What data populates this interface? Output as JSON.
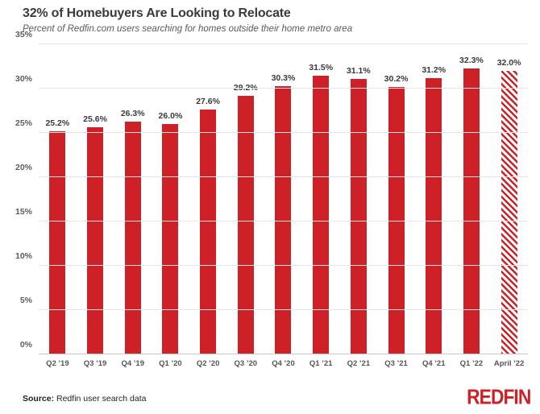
{
  "colors": {
    "red": "#cd2127",
    "grid": "#e5e5e5",
    "axis": "#c8c8c8",
    "text_dark": "#3a3a3a"
  },
  "chart_data": {
    "type": "bar",
    "title": "32% of Homebuyers Are Looking to Relocate",
    "subtitle": "Percent of Redfin.com users searching for homes outside their home metro area",
    "categories": [
      "Q2 ’19",
      "Q3 ’19",
      "Q4 ’19",
      "Q1 ’20",
      "Q2 ’20",
      "Q3 ’20",
      "Q4 ’20",
      "Q1 ’21",
      "Q2 ’21",
      "Q3 ’21",
      "Q4 ’21",
      "Q1 ’22",
      "April ’22"
    ],
    "values": [
      25.2,
      25.6,
      26.3,
      26.0,
      27.6,
      29.2,
      30.3,
      31.5,
      31.1,
      30.2,
      31.2,
      32.3,
      32.0
    ],
    "value_labels": [
      "25.2%",
      "25.6%",
      "26.3%",
      "26.0%",
      "27.6%",
      "29.2%",
      "30.3%",
      "31.5%",
      "31.1%",
      "30.2%",
      "31.2%",
      "32.3%",
      "32.0%"
    ],
    "hatched": [
      false,
      false,
      false,
      false,
      false,
      false,
      false,
      false,
      false,
      false,
      false,
      false,
      true
    ],
    "ylim": [
      0,
      35
    ],
    "yticks": [
      0,
      5,
      10,
      15,
      20,
      25,
      30,
      35
    ],
    "ytick_labels": [
      "0%",
      "5%",
      "10%",
      "15%",
      "20%",
      "25%",
      "30%",
      "35%"
    ],
    "bar_color": "#cd2127",
    "grid": true,
    "legend": "none"
  },
  "footer": {
    "source_label": "Source:",
    "source_text": " Redfin user search data",
    "logo_text": "REDFIN"
  }
}
